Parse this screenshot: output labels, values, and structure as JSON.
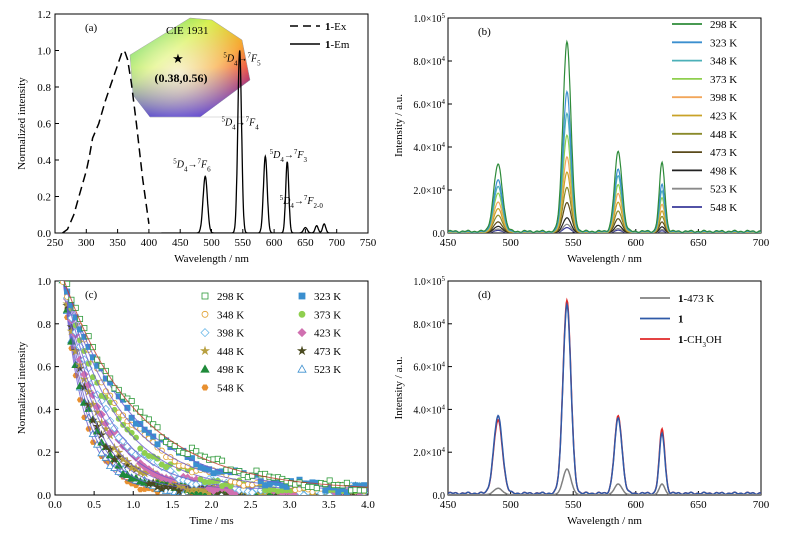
{
  "chart_data": [
    {
      "panel": "(a)",
      "type": "line",
      "xlabel": "Wavelength / nm",
      "ylabel": "Normalized intensity",
      "xlim": [
        250,
        750
      ],
      "ylim": [
        0,
        1.2
      ],
      "xticks": [
        "250",
        "300",
        "350",
        "400",
        "450",
        "500",
        "550",
        "600",
        "650",
        "700",
        "750"
      ],
      "yticks": [
        "0.0",
        "0.2",
        "0.4",
        "0.6",
        "0.8",
        "1.0",
        "1.2"
      ],
      "legend": {
        "position": "top-right",
        "entries": [
          {
            "prefix": "1",
            "suffix": "-Ex",
            "style": "dashed"
          },
          {
            "prefix": "1",
            "suffix": "-Em",
            "style": "solid"
          }
        ]
      },
      "inset": {
        "title": "CIE 1931",
        "coordinate": "(0.38,0.56)"
      },
      "annotations": [
        {
          "upper": "5",
          "main": "D",
          "sub": "4",
          "arrow": "→",
          "upper2": "7",
          "main2": "F",
          "sub2": "6",
          "x": 490,
          "y": 0.36
        },
        {
          "upper": "5",
          "main": "D",
          "sub": "4",
          "arrow": "→",
          "upper2": "7",
          "main2": "F",
          "sub2": "5",
          "x": 570,
          "y": 0.94
        },
        {
          "upper": "5",
          "main": "D",
          "sub": "4",
          "arrow": "→",
          "upper2": "7",
          "main2": "F",
          "sub2": "4",
          "x": 567,
          "y": 0.59
        },
        {
          "upper": "5",
          "main": "D",
          "sub": "4",
          "arrow": "→",
          "upper2": "7",
          "main2": "F",
          "sub2": "3",
          "x": 644,
          "y": 0.41
        },
        {
          "upper": "5",
          "main": "D",
          "sub": "4",
          "arrow": "→",
          "upper2": "7",
          "main2": "F",
          "sub2": "2-0",
          "x": 660,
          "y": 0.16
        }
      ],
      "series": [
        {
          "name": "1-Ex",
          "style": "dashed",
          "x": [
            262,
            270,
            280,
            290,
            300,
            305,
            310,
            320,
            330,
            340,
            350,
            358,
            362,
            366,
            372,
            380,
            390,
            400
          ],
          "y": [
            0.0,
            0.02,
            0.1,
            0.22,
            0.34,
            0.42,
            0.52,
            0.6,
            0.72,
            0.82,
            0.92,
            1.0,
            0.99,
            0.95,
            0.82,
            0.6,
            0.3,
            0.05
          ]
        },
        {
          "name": "1-Em",
          "style": "solid",
          "peaks": [
            {
              "x": 490,
              "y": 0.31,
              "w": 3.5
            },
            {
              "x": 545,
              "y": 1.0,
              "w": 3.0
            },
            {
              "x": 586,
              "y": 0.42,
              "w": 3.0
            },
            {
              "x": 621,
              "y": 0.39,
              "w": 2.5
            },
            {
              "x": 650,
              "y": 0.03,
              "w": 3.0
            },
            {
              "x": 668,
              "y": 0.04,
              "w": 2.5
            },
            {
              "x": 680,
              "y": 0.05,
              "w": 2.5
            }
          ]
        }
      ]
    },
    {
      "panel": "(b)",
      "type": "line",
      "xlabel": "Wavelength / nm",
      "ylabel": "Intensity / a.u.",
      "xlim": [
        450,
        700
      ],
      "ylim": [
        0,
        100000
      ],
      "xticks": [
        "450",
        "500",
        "550",
        "600",
        "650",
        "700"
      ],
      "yticks": [
        {
          "m": "0.0",
          "e": ""
        },
        {
          "m": "2.0×10",
          "e": "4"
        },
        {
          "m": "4.0×10",
          "e": "4"
        },
        {
          "m": "6.0×10",
          "e": "4"
        },
        {
          "m": "8.0×10",
          "e": "4"
        },
        {
          "m": "1.0×10",
          "e": "5"
        }
      ],
      "legend_position": "top-right",
      "peak_positions": [
        490,
        545,
        586,
        621
      ],
      "series": [
        {
          "name": "298 K",
          "color": "#2e8b3a",
          "peaks": [
            31000,
            88000,
            37000,
            32000
          ]
        },
        {
          "name": "323 K",
          "color": "#3b8fcf",
          "peaks": [
            24000,
            65000,
            29000,
            22000
          ]
        },
        {
          "name": "348 K",
          "color": "#4cb0b8",
          "peaks": [
            21000,
            55000,
            26000,
            19000
          ]
        },
        {
          "name": "373 K",
          "color": "#8fcf4f",
          "peaks": [
            18000,
            45000,
            22000,
            16000
          ]
        },
        {
          "name": "398 K",
          "color": "#f2a65a",
          "peaks": [
            14000,
            35000,
            18000,
            13000
          ]
        },
        {
          "name": "423 K",
          "color": "#c9a227",
          "peaks": [
            11000,
            28000,
            14000,
            10000
          ]
        },
        {
          "name": "448 K",
          "color": "#8a8a2a",
          "peaks": [
            8000,
            21000,
            10000,
            7500
          ]
        },
        {
          "name": "473 K",
          "color": "#5a4a1a",
          "peaks": [
            5000,
            14000,
            6500,
            5000
          ]
        },
        {
          "name": "498 K",
          "color": "#222222",
          "peaks": [
            3000,
            7000,
            3500,
            2800
          ]
        },
        {
          "name": "523 K",
          "color": "#8a8a8a",
          "peaks": [
            1800,
            4000,
            2000,
            1600
          ]
        },
        {
          "name": "548 K",
          "color": "#3a3a9a",
          "peaks": [
            1200,
            2500,
            1300,
            1000
          ]
        }
      ]
    },
    {
      "panel": "(c)",
      "type": "scatter",
      "xlabel": "Time / ms",
      "ylabel": "Normalized intensity",
      "xlim": [
        0,
        4.0
      ],
      "ylim": [
        0,
        1.0
      ],
      "xticks": [
        "0.0",
        "0.5",
        "1.0",
        "1.5",
        "2.0",
        "2.5",
        "3.0",
        "3.5",
        "4.0"
      ],
      "yticks": [
        "0.0",
        "0.2",
        "0.4",
        "0.6",
        "0.8",
        "1.0"
      ],
      "legend_position": "top-right",
      "series": [
        {
          "name": "298 K",
          "color": "#2e9a3a",
          "marker": "square-open",
          "tau": 0.95
        },
        {
          "name": "323 K",
          "color": "#3b8fcf",
          "marker": "square-filled",
          "tau": 0.85
        },
        {
          "name": "348 K",
          "color": "#e0a030",
          "marker": "circle-open",
          "tau": 0.75
        },
        {
          "name": "373 K",
          "color": "#8fcf4f",
          "marker": "circle-filled",
          "tau": 0.65
        },
        {
          "name": "398 K",
          "color": "#6ab8e8",
          "marker": "diamond-open",
          "tau": 0.55
        },
        {
          "name": "423 K",
          "color": "#d070b0",
          "marker": "diamond-filled",
          "tau": 0.48
        },
        {
          "name": "448 K",
          "color": "#b8a040",
          "marker": "star-filled",
          "tau": 0.42
        },
        {
          "name": "473 K",
          "color": "#4a4a20",
          "marker": "star-filled",
          "tau": 0.37
        },
        {
          "name": "498 K",
          "color": "#1f8a3a",
          "marker": "triangle-filled",
          "tau": 0.33
        },
        {
          "name": "523 K",
          "color": "#3b8fcf",
          "marker": "triangle-open",
          "tau": 0.3
        },
        {
          "name": "548 K",
          "color": "#e89030",
          "marker": "hexagon-filled",
          "tau": 0.27
        }
      ]
    },
    {
      "panel": "(d)",
      "type": "line",
      "xlabel": "Wavelength / nm",
      "ylabel": "Intensity / a.u.",
      "xlim": [
        450,
        700
      ],
      "ylim": [
        0,
        100000
      ],
      "xticks": [
        "450",
        "500",
        "550",
        "600",
        "650",
        "700"
      ],
      "yticks": [
        {
          "m": "0.0",
          "e": ""
        },
        {
          "m": "2.0×10",
          "e": "4"
        },
        {
          "m": "4.0×10",
          "e": "4"
        },
        {
          "m": "6.0×10",
          "e": "4"
        },
        {
          "m": "8.0×10",
          "e": "4"
        },
        {
          "m": "1.0×10",
          "e": "5"
        }
      ],
      "legend_position": "top-right",
      "peak_positions": [
        490,
        545,
        586,
        621
      ],
      "series": [
        {
          "label_bold": "1",
          "label_rest": "-473 K",
          "color": "#808080",
          "peaks": [
            3000,
            12000,
            5000,
            5000
          ]
        },
        {
          "label_bold": "1",
          "label_rest": "",
          "color": "#2f5aa8",
          "peaks": [
            36000,
            88000,
            35000,
            28000
          ]
        },
        {
          "label_bold": "1",
          "label_rest": "-CH",
          "label_sub": "3",
          "label_tail": "OH",
          "color": "#e02828",
          "peaks": [
            34000,
            90000,
            36000,
            30000
          ]
        }
      ]
    }
  ]
}
